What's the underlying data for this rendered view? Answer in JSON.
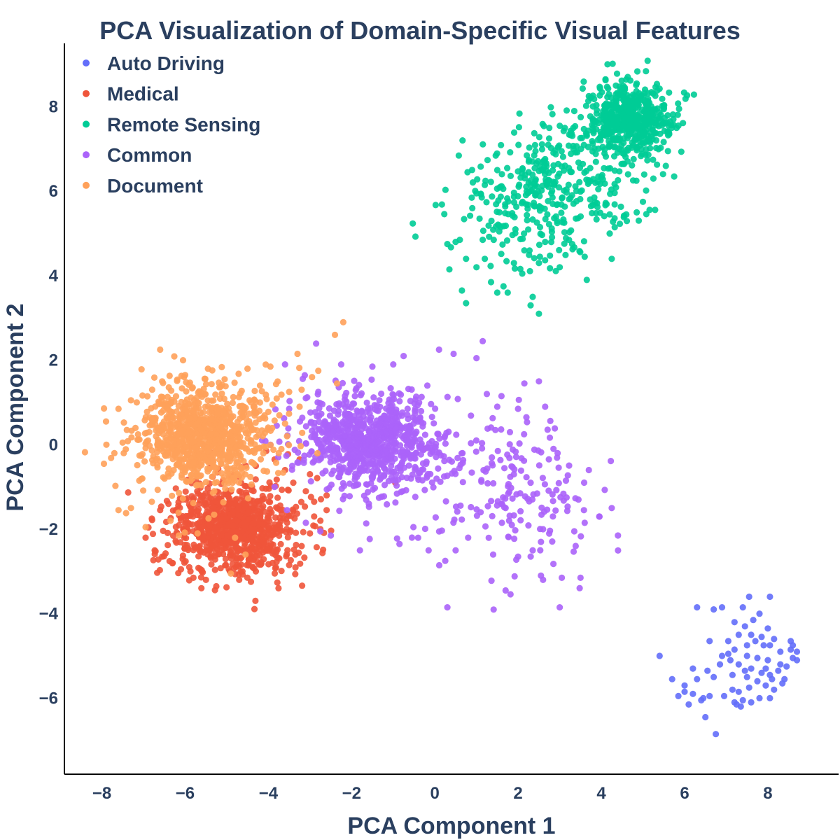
{
  "chart_data": {
    "type": "scatter",
    "title": "PCA Visualization of Domain-Specific Visual Features",
    "xlabel": "PCA Component 1",
    "ylabel": "PCA Component 2",
    "xlim": [
      -8.9,
      9.7
    ],
    "ylim": [
      -7.8,
      9.5
    ],
    "x_ticks": [
      -8,
      -6,
      -4,
      -2,
      0,
      2,
      4,
      6,
      8
    ],
    "x_tick_labels": [
      "−8",
      "−6",
      "−4",
      "−2",
      "0",
      "2",
      "4",
      "6",
      "8"
    ],
    "y_ticks": [
      -6,
      -4,
      -2,
      0,
      2,
      4,
      6,
      8
    ],
    "y_tick_labels": [
      "−6",
      "−4",
      "−2",
      "0",
      "2",
      "4",
      "6",
      "8"
    ],
    "grid": false,
    "legend_position": "top-left",
    "series": [
      {
        "name": "Auto Driving",
        "color": "#636efa",
        "points": [
          [
            6.3,
            -3.85
          ],
          [
            6.7,
            -3.9
          ],
          [
            6.9,
            -3.85
          ],
          [
            7.4,
            -3.85
          ],
          [
            7.55,
            -3.6
          ],
          [
            8.05,
            -3.6
          ],
          [
            7.8,
            -4.0
          ],
          [
            7.2,
            -4.2
          ],
          [
            7.45,
            -4.3
          ],
          [
            7.6,
            -4.5
          ],
          [
            8.0,
            -4.35
          ],
          [
            8.15,
            -4.6
          ],
          [
            8.55,
            -4.65
          ],
          [
            8.55,
            -4.85
          ],
          [
            8.3,
            -4.9
          ],
          [
            7.9,
            -4.75
          ],
          [
            7.7,
            -4.65
          ],
          [
            7.3,
            -4.5
          ],
          [
            6.6,
            -4.65
          ],
          [
            7.2,
            -4.85
          ],
          [
            7.5,
            -5.0
          ],
          [
            7.75,
            -5.05
          ],
          [
            8.0,
            -5.1
          ],
          [
            8.3,
            -5.2
          ],
          [
            8.6,
            -5.05
          ],
          [
            8.7,
            -5.1
          ],
          [
            6.9,
            -5.0
          ],
          [
            7.1,
            -5.1
          ],
          [
            7.3,
            -5.2
          ],
          [
            7.6,
            -5.3
          ],
          [
            7.85,
            -5.4
          ],
          [
            8.05,
            -5.45
          ],
          [
            8.1,
            -5.55
          ],
          [
            8.4,
            -5.55
          ],
          [
            7.95,
            -5.3
          ],
          [
            5.4,
            -5.0
          ],
          [
            6.2,
            -5.3
          ],
          [
            6.55,
            -5.35
          ],
          [
            6.7,
            -5.5
          ],
          [
            5.7,
            -5.55
          ],
          [
            6.0,
            -5.7
          ],
          [
            6.3,
            -5.55
          ],
          [
            7.5,
            -5.5
          ],
          [
            7.75,
            -5.6
          ],
          [
            8.35,
            -5.65
          ],
          [
            7.55,
            -5.75
          ],
          [
            7.15,
            -5.8
          ],
          [
            6.95,
            -5.95
          ],
          [
            6.6,
            -5.95
          ],
          [
            6.45,
            -6.0
          ],
          [
            6.2,
            -5.9
          ],
          [
            6.0,
            -5.85
          ],
          [
            5.85,
            -5.95
          ],
          [
            6.1,
            -6.15
          ],
          [
            6.4,
            -6.05
          ],
          [
            7.2,
            -6.1
          ],
          [
            7.4,
            -6.05
          ],
          [
            7.6,
            -6.1
          ],
          [
            7.8,
            -6.0
          ],
          [
            8.05,
            -6.0
          ],
          [
            6.5,
            -6.45
          ],
          [
            6.75,
            -6.85
          ],
          [
            7.25,
            -6.15
          ],
          [
            7.35,
            -6.2
          ],
          [
            8.6,
            -4.75
          ],
          [
            8.7,
            -4.9
          ],
          [
            8.05,
            -4.75
          ],
          [
            7.5,
            -4.75
          ],
          [
            7.85,
            -4.55
          ],
          [
            7.65,
            -4.15
          ],
          [
            7.05,
            -4.65
          ],
          [
            7.45,
            -5.35
          ],
          [
            7.15,
            -5.45
          ],
          [
            8.25,
            -5.35
          ],
          [
            8.45,
            -5.25
          ],
          [
            6.85,
            -5.2
          ],
          [
            7.05,
            -4.95
          ],
          [
            7.95,
            -5.7
          ],
          [
            8.15,
            -5.8
          ],
          [
            7.3,
            -5.85
          ]
        ]
      },
      {
        "name": "Medical",
        "color": "#ef553b",
        "spread": {
          "center": [
            -4.8,
            -2.0
          ],
          "sd": [
            0.75,
            0.55
          ],
          "n": 850,
          "seed": 12
        },
        "points": [
          [
            -6.95,
            -2.2
          ],
          [
            -6.55,
            -2.65
          ],
          [
            -6.3,
            -2.8
          ],
          [
            -6.1,
            -2.95
          ],
          [
            -5.8,
            -3.15
          ],
          [
            -5.5,
            -3.2
          ],
          [
            -5.25,
            -3.35
          ],
          [
            -4.7,
            -3.2
          ],
          [
            -4.3,
            -3.0
          ],
          [
            -3.5,
            -2.85
          ],
          [
            -3.9,
            -2.8
          ],
          [
            -3.2,
            -2.4
          ],
          [
            -3.0,
            -2.1
          ],
          [
            -2.75,
            -1.8
          ],
          [
            -2.6,
            -1.55
          ],
          [
            -2.9,
            -1.35
          ],
          [
            -3.1,
            -1.1
          ],
          [
            -3.4,
            -0.9
          ],
          [
            -3.6,
            -0.6
          ],
          [
            -3.85,
            -0.35
          ],
          [
            -4.05,
            -0.15
          ],
          [
            -4.3,
            -0.5
          ],
          [
            -6.8,
            -1.75
          ],
          [
            -6.6,
            -1.55
          ],
          [
            -6.4,
            -1.4
          ],
          [
            -2.6,
            -1.2
          ],
          [
            -2.75,
            -2.0
          ],
          [
            -5.9,
            -2.9
          ],
          [
            -5.6,
            -3.0
          ],
          [
            -4.95,
            -2.95
          ],
          [
            -0.95,
            -0.9
          ],
          [
            -0.25,
            -0.1
          ],
          [
            -3.25,
            -0.35
          ],
          [
            -3.0,
            -0.7
          ],
          [
            -2.9,
            -1.7
          ]
        ]
      },
      {
        "name": "Remote Sensing",
        "color": "#00cc96",
        "spread": {
          "center": [
            4.7,
            7.7
          ],
          "sd": [
            0.55,
            0.42
          ],
          "n": 520,
          "seed": 21
        },
        "tail": {
          "from": [
            3.85,
            6.6
          ],
          "to": [
            1.7,
            5.4
          ],
          "sd": [
            0.85,
            0.7
          ],
          "n": 380,
          "seed": 31
        },
        "points": [
          [
            0.3,
            4.75
          ],
          [
            0.35,
            4.15
          ],
          [
            0.6,
            4.85
          ],
          [
            0.65,
            3.65
          ],
          [
            0.75,
            3.35
          ],
          [
            1.0,
            4.2
          ],
          [
            1.2,
            4.4
          ],
          [
            1.35,
            3.85
          ],
          [
            1.5,
            3.6
          ],
          [
            1.75,
            3.6
          ],
          [
            2.35,
            3.5
          ],
          [
            2.5,
            3.1
          ],
          [
            2.3,
            3.3
          ],
          [
            1.15,
            4.85
          ],
          [
            1.65,
            3.75
          ],
          [
            2.1,
            4.05
          ],
          [
            3.0,
            4.2
          ],
          [
            3.6,
            4.45
          ],
          [
            3.65,
            3.9
          ],
          [
            4.25,
            4.4
          ],
          [
            5.25,
            6.3
          ],
          [
            5.55,
            6.6
          ],
          [
            5.75,
            6.35
          ],
          [
            5.6,
            6.95
          ],
          [
            4.1,
            8.65
          ],
          [
            4.35,
            8.5
          ],
          [
            4.85,
            8.55
          ],
          [
            2.75,
            7.5
          ],
          [
            3.35,
            7.9
          ],
          [
            3.7,
            8.25
          ],
          [
            2.5,
            4.3
          ],
          [
            3.3,
            4.75
          ],
          [
            4.2,
            5.0
          ],
          [
            4.6,
            5.45
          ],
          [
            4.85,
            5.5
          ],
          [
            5.0,
            5.75
          ],
          [
            1.5,
            6.5
          ],
          [
            1.2,
            6.15
          ],
          [
            1.0,
            5.95
          ],
          [
            0.9,
            5.6
          ],
          [
            0.5,
            4.8
          ],
          [
            0.75,
            4.4
          ],
          [
            1.9,
            4.3
          ],
          [
            2.15,
            4.6
          ],
          [
            2.65,
            4.8
          ]
        ]
      },
      {
        "name": "Common",
        "color": "#ab63fa",
        "spread": {
          "center": [
            -1.6,
            0.1
          ],
          "sd": [
            0.85,
            0.6
          ],
          "n": 780,
          "seed": 44
        },
        "tail": {
          "from": [
            0.4,
            -0.6
          ],
          "to": [
            2.6,
            -1.6
          ],
          "sd": [
            1.1,
            0.9
          ],
          "n": 190,
          "seed": 52
        },
        "points": [
          [
            1.15,
            2.45
          ],
          [
            0.1,
            2.25
          ],
          [
            0.45,
            2.15
          ],
          [
            1.0,
            2.05
          ],
          [
            -0.75,
            2.1
          ],
          [
            -1.0,
            1.9
          ],
          [
            -1.5,
            1.85
          ],
          [
            -2.25,
            1.9
          ],
          [
            -3.6,
            1.9
          ],
          [
            2.5,
            1.5
          ],
          [
            2.15,
            1.45
          ],
          [
            1.6,
            1.15
          ],
          [
            1.25,
            1.2
          ],
          [
            2.65,
            0.9
          ],
          [
            1.5,
            0.9
          ],
          [
            2.0,
            0.85
          ],
          [
            2.2,
            0.65
          ],
          [
            2.85,
            -0.1
          ],
          [
            2.95,
            -0.2
          ],
          [
            3.7,
            -0.6
          ],
          [
            3.15,
            -0.85
          ],
          [
            3.45,
            -1.3
          ],
          [
            4.25,
            -1.5
          ],
          [
            3.95,
            -1.7
          ],
          [
            3.6,
            -1.85
          ],
          [
            3.35,
            -2.05
          ],
          [
            2.6,
            -2.0
          ],
          [
            2.55,
            -2.3
          ],
          [
            2.35,
            -2.5
          ],
          [
            2.0,
            -2.65
          ],
          [
            4.4,
            -2.15
          ],
          [
            3.05,
            -3.15
          ],
          [
            3.5,
            -3.15
          ],
          [
            2.55,
            -3.1
          ],
          [
            2.6,
            -3.2
          ],
          [
            1.7,
            -3.45
          ],
          [
            3.0,
            -3.85
          ],
          [
            0.3,
            -3.85
          ],
          [
            0.25,
            -2.75
          ],
          [
            0.5,
            -2.5
          ],
          [
            -0.15,
            -2.5
          ],
          [
            -0.85,
            -2.35
          ],
          [
            -1.8,
            -2.5
          ],
          [
            -2.5,
            -2.15
          ],
          [
            -2.75,
            -2.05
          ],
          [
            -3.1,
            -1.85
          ],
          [
            -3.55,
            -1.55
          ],
          [
            -3.85,
            -1.0
          ],
          [
            -3.95,
            0.0
          ],
          [
            -3.8,
            0.45
          ],
          [
            -3.5,
            0.85
          ],
          [
            -3.1,
            1.1
          ],
          [
            -2.8,
            1.25
          ],
          [
            1.4,
            -2.6
          ],
          [
            0.8,
            -2.2
          ],
          [
            1.1,
            -1.6
          ],
          [
            1.7,
            -1.5
          ],
          [
            2.05,
            -1.15
          ],
          [
            1.9,
            -0.7
          ],
          [
            2.3,
            -0.9
          ]
        ]
      },
      {
        "name": "Document",
        "color": "#ffa15a",
        "spread": {
          "center": [
            -5.6,
            0.2
          ],
          "sd": [
            0.8,
            0.6
          ],
          "n": 900,
          "seed": 77
        },
        "points": [
          [
            -2.2,
            2.9
          ],
          [
            -2.4,
            2.6
          ],
          [
            -3.3,
            2.15
          ],
          [
            -3.95,
            1.85
          ],
          [
            -6.6,
            2.25
          ],
          [
            -6.05,
            2.0
          ],
          [
            -5.45,
            1.8
          ],
          [
            -4.5,
            1.8
          ],
          [
            -7.9,
            0.55
          ],
          [
            -7.6,
            0.85
          ],
          [
            -7.95,
            -0.45
          ],
          [
            -7.6,
            -1.55
          ],
          [
            -7.3,
            -1.5
          ],
          [
            -6.8,
            -1.35
          ],
          [
            -6.95,
            -1.95
          ],
          [
            -6.35,
            -1.8
          ],
          [
            -2.35,
            1.45
          ],
          [
            -2.8,
            1.75
          ],
          [
            -3.2,
            1.3
          ],
          [
            -3.5,
            1.25
          ],
          [
            -3.9,
            0.95
          ],
          [
            -3.6,
            0.5
          ],
          [
            -3.55,
            0.2
          ],
          [
            -3.75,
            -0.2
          ],
          [
            -4.8,
            -2.2
          ],
          [
            -4.55,
            -2.6
          ],
          [
            -4.9,
            -3.05
          ],
          [
            -5.7,
            -2.1
          ],
          [
            -6.15,
            -2.15
          ],
          [
            -3.25,
            0.9
          ],
          [
            -7.3,
            1.05
          ],
          [
            -7.4,
            0.35
          ],
          [
            -7.5,
            0.05
          ],
          [
            -7.7,
            -0.2
          ],
          [
            -6.55,
            1.5
          ],
          [
            -4.2,
            1.4
          ],
          [
            -4.45,
            1.05
          ],
          [
            -2.95,
            1.6
          ],
          [
            -5.05,
            1.55
          ],
          [
            -7.1,
            -0.85
          ]
        ]
      }
    ]
  }
}
